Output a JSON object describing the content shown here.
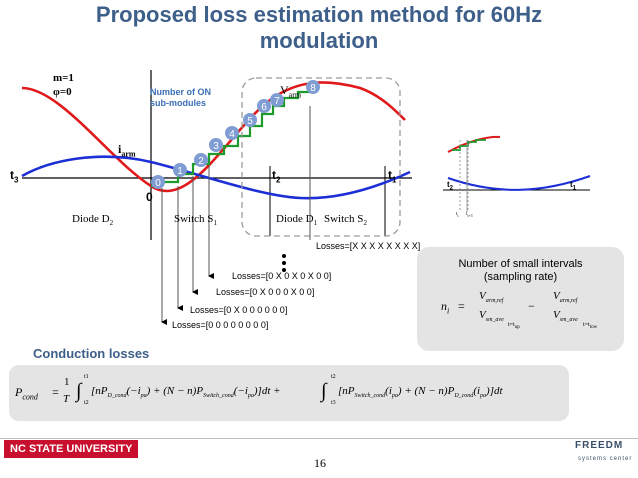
{
  "title_line1": "Proposed loss estimation method for 60Hz",
  "title_line2": "modulation",
  "params": {
    "m": "m=1",
    "phi": "φ=0"
  },
  "on_box": {
    "line1": "Number of ON",
    "line2": "sub-modules"
  },
  "labels": {
    "iarm": "i",
    "iarm_sub": "arm",
    "varm": "V",
    "varm_sub": "arm",
    "t3": "t",
    "t3_sub": "3",
    "t2": "t",
    "t2_sub": "2",
    "t1": "t",
    "t1_sub": "1",
    "zero": "0"
  },
  "switch_labels": [
    {
      "text": "Diode D",
      "sub": "2"
    },
    {
      "text": "Switch S",
      "sub": "1"
    },
    {
      "text": "Diode D",
      "sub": "1"
    },
    {
      "text": "Switch S",
      "sub": "2"
    }
  ],
  "step_numbers": [
    "0",
    "1",
    "2",
    "3",
    "4",
    "5",
    "6",
    "7",
    "8"
  ],
  "losses": [
    "Losses=[X X X X X X X X]",
    "Losses=[0 X 0 X 0 X 0 0]",
    "Losses=[0 X 0 0 0 X 0 0]",
    "Losses=[0 X 0 0 0 0 0 0]",
    "Losses=[0 0 0 0 0 0 0 0]"
  ],
  "sampling": {
    "title_line1": "Number of small intervals",
    "title_line2": "(sampling rate)",
    "eq": {
      "lhs": "n",
      "lhs_sub": "i",
      "eq_sign": "=",
      "v": "V",
      "num_sub": "arm,ref",
      "den_sub": "sm_ave",
      "eval1": "t=t",
      "eval1_sub": "up",
      "minus": "−",
      "eval2": "t=t",
      "eval2_sub": "low"
    },
    "mini": {
      "t2": "t",
      "t2_sub": "2",
      "t1": "t",
      "t1_sub": "1",
      "ti": "t",
      "ti_sub": "i",
      "ti1": "t",
      "ti1_sub": "i+1"
    }
  },
  "conduction": {
    "heading": "Conduction losses",
    "p": "P",
    "p_sub": "cond",
    "eq_sign": "=",
    "frac_num": "1",
    "frac_den": "T",
    "int1_upper": "t1",
    "int1_lower": "t2",
    "int2_upper": "t2",
    "int2_lower": "t3",
    "term1": "[nP",
    "term1_sub": "D_cond",
    "term1_arg": "(−i",
    "term1_arg_sub": "pa",
    "term2": ") + (N − n)P",
    "term2_sub": "Switch_cond",
    "term2_arg": "(−i",
    "term2_arg_sub": "pa",
    "term2_end": ")]dt +",
    "term3": "[nP",
    "term3_sub": "Switch_cond",
    "term3_arg": "(i",
    "term3_arg_sub": "pa",
    "term4": ") + (N − n)P",
    "term4_sub": "D_cond",
    "term4_arg": "(i",
    "term4_arg_sub": "pa",
    "term4_end": ")]dt"
  },
  "footer": {
    "university": "NC STATE UNIVERSITY",
    "page": "16",
    "logo": "FREEDM",
    "logo_sub": "systems center"
  },
  "colors": {
    "title": "#3d5f8a",
    "red_wave": "#e0191b",
    "blue_wave": "#1c2fd6",
    "staircase": "#1d9a2c",
    "badge": "#7f9cd3",
    "on_box_text": "#3a6fb5"
  }
}
